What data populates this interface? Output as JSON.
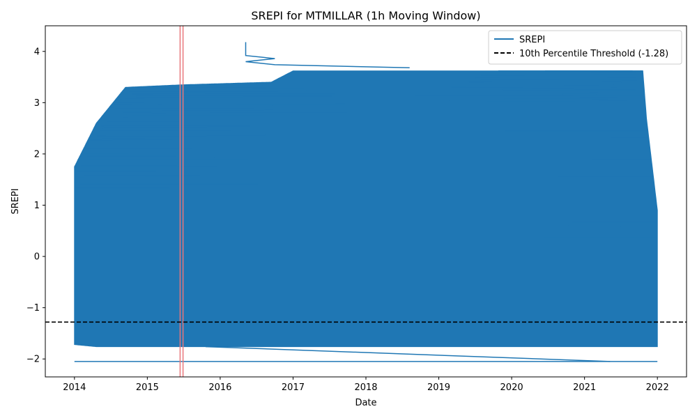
{
  "chart_data": {
    "type": "line",
    "title": "SREPI for MTMILLAR (1h Moving Window)",
    "xlabel": "Date",
    "ylabel": "SREPI",
    "xlim": [
      2013.6,
      2022.4
    ],
    "ylim": [
      -2.35,
      4.5
    ],
    "x_ticks": [
      2014,
      2015,
      2016,
      2017,
      2018,
      2019,
      2020,
      2021,
      2022
    ],
    "x_tick_labels": [
      "2014",
      "2015",
      "2016",
      "2017",
      "2018",
      "2019",
      "2020",
      "2021",
      "2022"
    ],
    "y_ticks": [
      -2,
      -1,
      0,
      1,
      2,
      3,
      4
    ],
    "y_tick_labels": [
      "−2",
      "−1",
      "0",
      "1",
      "2",
      "3",
      "4"
    ],
    "grid": false,
    "legend_position": "top-right",
    "series": [
      {
        "name": "SREPI",
        "color": "#1f77b4",
        "kind": "dense oscillating line",
        "envelope": [
          {
            "x": 2014.0,
            "low": -1.72,
            "high": 1.75
          },
          {
            "x": 2014.3,
            "low": -1.76,
            "high": 2.6
          },
          {
            "x": 2014.7,
            "low": -1.76,
            "high": 3.3
          },
          {
            "x": 2015.5,
            "low": -1.76,
            "high": 3.35
          },
          {
            "x": 2016.7,
            "low": -1.76,
            "high": 3.4
          },
          {
            "x": 2017.0,
            "low": -1.76,
            "high": 3.62
          },
          {
            "x": 2019.7,
            "low": -1.76,
            "high": 3.62
          },
          {
            "x": 2020.5,
            "low": -1.76,
            "high": 3.62
          },
          {
            "x": 2021.0,
            "low": -1.76,
            "high": 3.62
          },
          {
            "x": 2021.8,
            "low": -1.76,
            "high": 3.62
          },
          {
            "x": 2021.85,
            "low": -1.76,
            "high": 2.7
          },
          {
            "x": 2021.95,
            "low": -1.76,
            "high": 1.5
          },
          {
            "x": 2022.0,
            "low": -1.76,
            "high": 0.9
          }
        ],
        "points": [
          [
            2014.0,
            -2.05
          ],
          [
            2022.0,
            -2.05
          ],
          [
            2015.8,
            -1.76
          ],
          [
            2021.35,
            -2.05
          ],
          [
            2016.35,
            4.18
          ],
          [
            2016.35,
            3.92
          ],
          [
            2016.75,
            3.86
          ],
          [
            2016.35,
            3.8
          ],
          [
            2016.75,
            3.74
          ],
          [
            2018.6,
            3.68
          ]
        ]
      },
      {
        "name": "10th Percentile Threshold (-1.28)",
        "color": "#000000",
        "kind": "horizontal dashed line",
        "y": -1.28
      }
    ],
    "vertical_markers": [
      {
        "x": 2015.45,
        "color": "#e8767a"
      },
      {
        "x": 2015.49,
        "color": "#e8767a"
      }
    ]
  }
}
